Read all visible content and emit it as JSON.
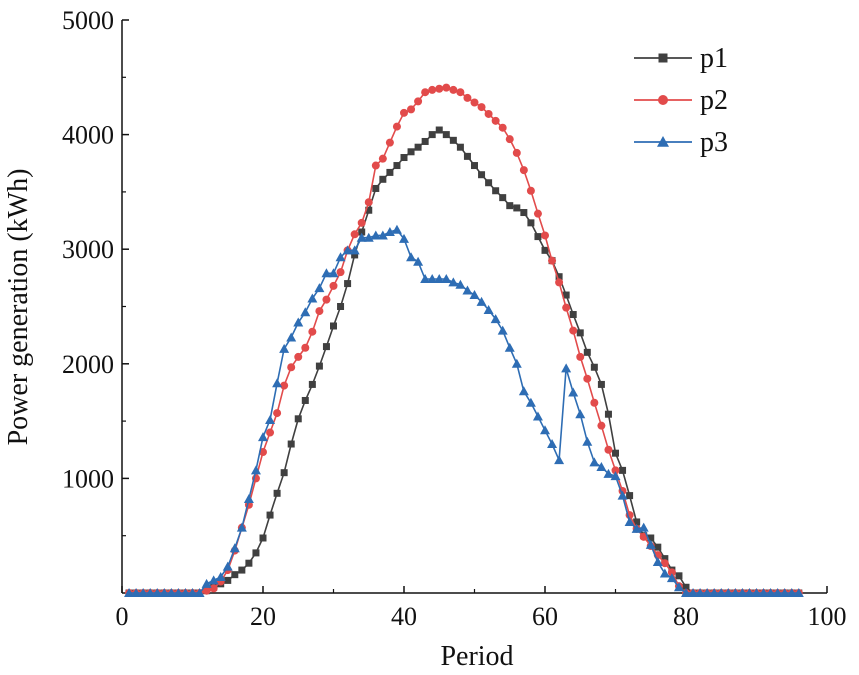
{
  "chart_data": {
    "type": "line",
    "xlabel": "Period",
    "ylabel": "Power generation (kWh)",
    "xlim": [
      0,
      100
    ],
    "ylim": [
      0,
      5000
    ],
    "xticks": [
      0,
      20,
      40,
      60,
      80,
      100
    ],
    "yticks": [
      1000,
      2000,
      3000,
      4000,
      5000
    ],
    "xtick_labels": [
      "0",
      "20",
      "40",
      "60",
      "80",
      "100"
    ],
    "ytick_labels": [
      "1000",
      "2000",
      "3000",
      "4000",
      "5000"
    ],
    "grid": false,
    "legend_position": "top-right",
    "x": [
      1,
      2,
      3,
      4,
      5,
      6,
      7,
      8,
      9,
      10,
      11,
      12,
      13,
      14,
      15,
      16,
      17,
      18,
      19,
      20,
      21,
      22,
      23,
      24,
      25,
      26,
      27,
      28,
      29,
      30,
      31,
      32,
      33,
      34,
      35,
      36,
      37,
      38,
      39,
      40,
      41,
      42,
      43,
      44,
      45,
      46,
      47,
      48,
      49,
      50,
      51,
      52,
      53,
      54,
      55,
      56,
      57,
      58,
      59,
      60,
      61,
      62,
      63,
      64,
      65,
      66,
      67,
      68,
      69,
      70,
      71,
      72,
      73,
      74,
      75,
      76,
      77,
      78,
      79,
      80,
      81,
      82,
      83,
      84,
      85,
      86,
      87,
      88,
      89,
      90,
      91,
      92,
      93,
      94,
      95,
      96
    ],
    "series": [
      {
        "name": "p1",
        "color": "#404040",
        "marker": "square",
        "values": [
          0,
          0,
          0,
          0,
          0,
          0,
          0,
          0,
          0,
          0,
          0,
          20,
          50,
          80,
          110,
          160,
          200,
          260,
          350,
          480,
          680,
          870,
          1050,
          1300,
          1520,
          1680,
          1820,
          1980,
          2150,
          2330,
          2500,
          2700,
          2950,
          3150,
          3340,
          3530,
          3610,
          3670,
          3730,
          3800,
          3850,
          3890,
          3940,
          4000,
          4040,
          4000,
          3950,
          3890,
          3810,
          3730,
          3650,
          3580,
          3510,
          3450,
          3380,
          3360,
          3320,
          3230,
          3110,
          2990,
          2900,
          2760,
          2600,
          2430,
          2270,
          2100,
          1970,
          1820,
          1560,
          1220,
          1070,
          850,
          620,
          500,
          480,
          400,
          300,
          200,
          150,
          50,
          0,
          0,
          0,
          0,
          0,
          0,
          0,
          0,
          0,
          0,
          0,
          0,
          0,
          0,
          0,
          0
        ]
      },
      {
        "name": "p2",
        "color": "#e24b4b",
        "marker": "circle",
        "values": [
          0,
          0,
          0,
          0,
          0,
          0,
          0,
          0,
          0,
          0,
          0,
          20,
          40,
          100,
          200,
          370,
          570,
          770,
          1000,
          1230,
          1400,
          1570,
          1810,
          1970,
          2060,
          2140,
          2280,
          2460,
          2560,
          2680,
          2800,
          2990,
          3130,
          3230,
          3410,
          3730,
          3790,
          3930,
          4070,
          4190,
          4220,
          4290,
          4370,
          4390,
          4400,
          4410,
          4390,
          4370,
          4320,
          4280,
          4240,
          4180,
          4120,
          4060,
          3960,
          3840,
          3690,
          3510,
          3310,
          3120,
          2900,
          2710,
          2490,
          2290,
          2060,
          1870,
          1660,
          1460,
          1250,
          1070,
          890,
          680,
          560,
          490,
          410,
          330,
          260,
          180,
          60,
          0,
          0,
          0,
          0,
          0,
          0,
          0,
          0,
          0,
          0,
          0,
          0,
          0,
          0,
          0,
          0,
          0
        ]
      },
      {
        "name": "p3",
        "color": "#2e6db4",
        "marker": "triangle",
        "values": [
          0,
          0,
          0,
          0,
          0,
          0,
          0,
          0,
          0,
          0,
          0,
          80,
          110,
          140,
          230,
          390,
          570,
          820,
          1070,
          1360,
          1510,
          1830,
          2130,
          2230,
          2360,
          2450,
          2570,
          2660,
          2790,
          2790,
          2930,
          2990,
          2990,
          3100,
          3100,
          3120,
          3120,
          3150,
          3170,
          3090,
          2930,
          2890,
          2740,
          2740,
          2740,
          2740,
          2710,
          2690,
          2640,
          2600,
          2540,
          2470,
          2390,
          2290,
          2140,
          2000,
          1760,
          1660,
          1540,
          1420,
          1300,
          1160,
          1960,
          1750,
          1560,
          1320,
          1140,
          1100,
          1040,
          1020,
          850,
          620,
          560,
          570,
          420,
          270,
          170,
          130,
          50,
          0,
          0,
          0,
          0,
          0,
          0,
          0,
          0,
          0,
          0,
          0,
          0,
          0,
          0,
          0,
          0,
          0
        ]
      }
    ]
  }
}
